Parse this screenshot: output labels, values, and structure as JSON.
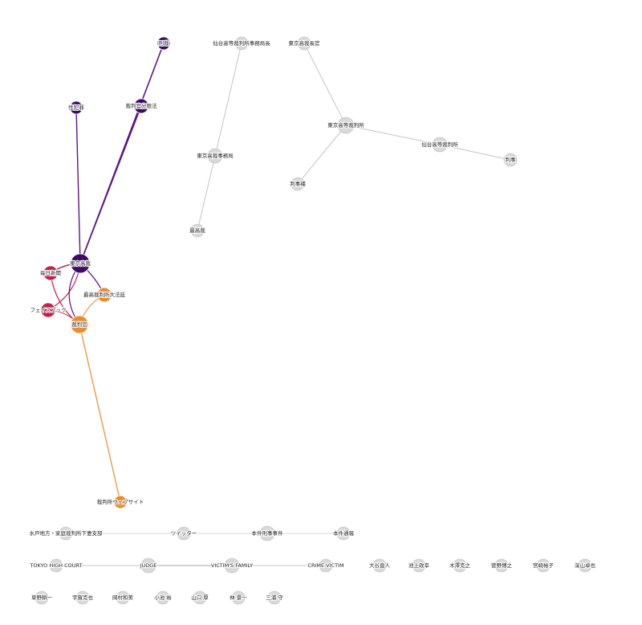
{
  "colors": {
    "purple": "#3d0a6b",
    "purple_light": "#5a1585",
    "crimson": "#c81e4a",
    "orange": "#f08a24",
    "gray_node": "#d9d9d9",
    "gray_edge": "#c4c4c4"
  },
  "nodes": {
    "keiji": "刑裁",
    "seihanzai": "性犯罪",
    "saibankan_bunkenho": "裁判官分限法",
    "tokyo_koban": "東京高裁",
    "mainichi": "毎日新聞",
    "saikou_daihotei": "最高裁判所大法廷",
    "facebook": "フェイスブック",
    "saibankan": "裁判官",
    "website": "裁判所ウェブサイト",
    "sendai_jimukyokucho": "仙台高等裁判所事務局長",
    "tokyo_chokan": "東京高裁長官",
    "tokyo_kotosaibansho": "東京高等裁判所",
    "sendai_kotosaibansho": "仙台高等裁判所",
    "keiji2": "判事",
    "jimukyoku": "東京高裁事務局",
    "hanjiho": "判事補",
    "saikosai": "最高裁",
    "mito": "水戸地方・家庭裁判所下妻支部",
    "twitter": "ツイッター",
    "keiji_jiken": "本件刑事事件",
    "honken_tsuho": "本件通報",
    "tokyo_high_court": "TOKYO HIGH COURT",
    "judge": "JUDGE",
    "victims_family": "VICTIM'S FAMILY",
    "crime_victim": "CRIME VICTIM",
    "otani": "大谷直人",
    "ikegami": "池上政幸",
    "kizawa": "木澤克之",
    "sugano": "菅野博之",
    "miyazaki": "宮崎裕子",
    "fukayama": "深山卓也",
    "kusano": "草野耕一",
    "ugaya": "宇賀克也",
    "okamura": "岡村和美",
    "koike": "小池 裕",
    "yamaguchi": "山口 厚",
    "hayashi": "林 景一",
    "miura": "三浦 守"
  }
}
